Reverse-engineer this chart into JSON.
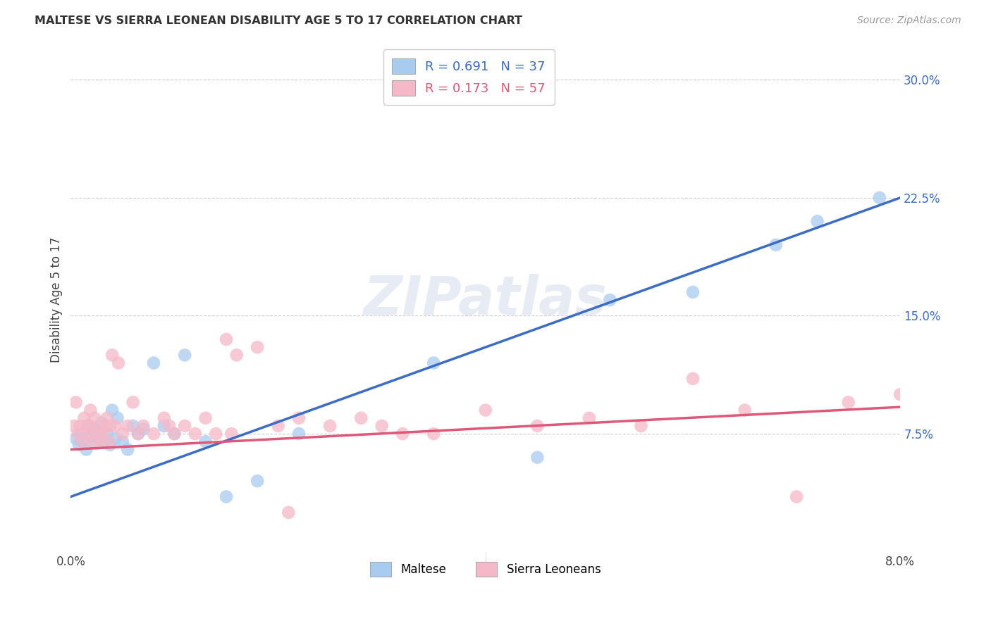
{
  "title": "MALTESE VS SIERRA LEONEAN DISABILITY AGE 5 TO 17 CORRELATION CHART",
  "source": "Source: ZipAtlas.com",
  "ylabel": "Disability Age 5 to 17",
  "xlim": [
    0.0,
    8.0
  ],
  "ylim": [
    0.0,
    32.0
  ],
  "y_ticks": [
    7.5,
    15.0,
    22.5,
    30.0
  ],
  "y_tick_labels": [
    "7.5%",
    "15.0%",
    "22.5%",
    "30.0%"
  ],
  "legend1_label": "R = 0.691   N = 37",
  "legend2_label": "R = 0.173   N = 57",
  "legend_bottom_label1": "Maltese",
  "legend_bottom_label2": "Sierra Leoneans",
  "blue_color": "#A8CCF0",
  "pink_color": "#F5B8C8",
  "blue_line_color": "#3A6CC8",
  "pink_line_color": "#E05878",
  "watermark": "ZIPatlas",
  "maltese_x": [
    0.05,
    0.08,
    0.1,
    0.12,
    0.15,
    0.17,
    0.2,
    0.22,
    0.25,
    0.28,
    0.3,
    0.33,
    0.35,
    0.38,
    0.4,
    0.43,
    0.45,
    0.5,
    0.55,
    0.6,
    0.65,
    0.7,
    0.8,
    0.9,
    1.0,
    1.1,
    1.3,
    1.5,
    1.8,
    2.2,
    3.5,
    4.5,
    5.2,
    6.0,
    6.8,
    7.2,
    7.8
  ],
  "maltese_y": [
    7.2,
    6.8,
    7.5,
    7.0,
    6.5,
    8.0,
    7.3,
    7.8,
    6.9,
    7.5,
    8.2,
    7.0,
    7.5,
    6.8,
    9.0,
    7.2,
    8.5,
    7.0,
    6.5,
    8.0,
    7.5,
    7.8,
    12.0,
    8.0,
    7.5,
    12.5,
    7.0,
    3.5,
    4.5,
    7.5,
    12.0,
    6.0,
    16.0,
    16.5,
    19.5,
    21.0,
    22.5
  ],
  "sierra_x": [
    0.03,
    0.05,
    0.07,
    0.09,
    0.11,
    0.13,
    0.15,
    0.17,
    0.19,
    0.21,
    0.23,
    0.25,
    0.27,
    0.29,
    0.31,
    0.33,
    0.35,
    0.37,
    0.4,
    0.43,
    0.46,
    0.5,
    0.55,
    0.6,
    0.65,
    0.7,
    0.8,
    0.9,
    1.0,
    1.1,
    1.2,
    1.3,
    1.4,
    1.5,
    1.6,
    1.8,
    2.0,
    2.2,
    2.5,
    2.8,
    3.0,
    3.2,
    3.5,
    4.0,
    4.5,
    5.0,
    5.5,
    6.0,
    6.5,
    7.0,
    7.5,
    8.0,
    0.18,
    0.38,
    0.95,
    1.55,
    2.1
  ],
  "sierra_y": [
    8.0,
    9.5,
    7.5,
    8.0,
    7.0,
    8.5,
    8.0,
    7.5,
    9.0,
    7.0,
    8.5,
    7.5,
    8.0,
    7.0,
    7.5,
    8.0,
    8.5,
    7.0,
    12.5,
    8.0,
    12.0,
    7.5,
    8.0,
    9.5,
    7.5,
    8.0,
    7.5,
    8.5,
    7.5,
    8.0,
    7.5,
    8.5,
    7.5,
    13.5,
    12.5,
    13.0,
    8.0,
    8.5,
    8.0,
    8.5,
    8.0,
    7.5,
    7.5,
    9.0,
    8.0,
    8.5,
    8.0,
    11.0,
    9.0,
    3.5,
    9.5,
    10.0,
    8.0,
    8.0,
    8.0,
    7.5,
    2.5
  ]
}
